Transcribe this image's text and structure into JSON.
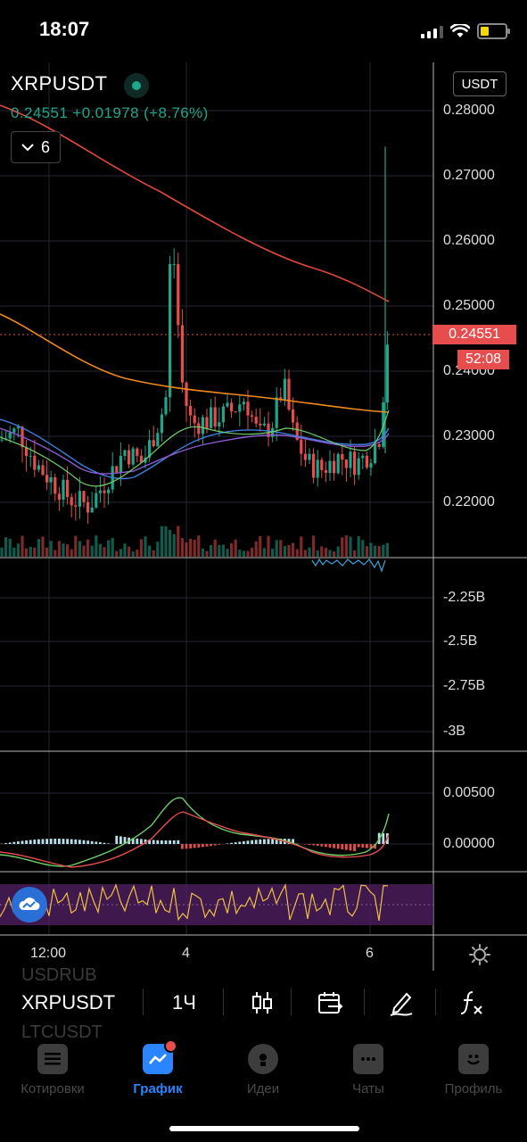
{
  "status_bar": {
    "time": "18:07"
  },
  "chart_header": {
    "symbol": "XRPUSDT",
    "quote": "0.24551 +0.01978 (+8.76%)",
    "indicator_count": "6",
    "currency": "USDT"
  },
  "price_axis": [
    "0.28000",
    "0.27000",
    "0.26000",
    "0.25000",
    "0.24000",
    "0.23000",
    "0.22000"
  ],
  "current_price_tag": "0.24551",
  "countdown_tag": "52:08",
  "volume_axis": [
    "-2.25B",
    "-2.5B",
    "-2.75B",
    "-3B"
  ],
  "macd_axis": [
    "0.00500",
    "0.00000"
  ],
  "time_axis": [
    "12:00",
    "4",
    "6"
  ],
  "toolbar": {
    "ghost_above": "USDRUB",
    "ghost_below": "LTCUSDT",
    "symbol": "XRPUSDT",
    "interval": "1Ч"
  },
  "tabs": [
    {
      "label": "Котировки",
      "icon": "list-icon"
    },
    {
      "label": "График",
      "icon": "chart-icon"
    },
    {
      "label": "Идеи",
      "icon": "lightbulb-icon"
    },
    {
      "label": "Чаты",
      "icon": "chat-icon"
    },
    {
      "label": "Профиль",
      "icon": "smile-icon"
    }
  ],
  "active_tab": "График",
  "colors": {
    "bull": "#1ea58a",
    "bear": "#e84d4d",
    "accent": "#2b85ff",
    "ma_red": "#e0483b",
    "ma_orange": "#f08a1e",
    "rsi_line": "#f0c040",
    "rsi_band": "#4a1d5c"
  }
}
